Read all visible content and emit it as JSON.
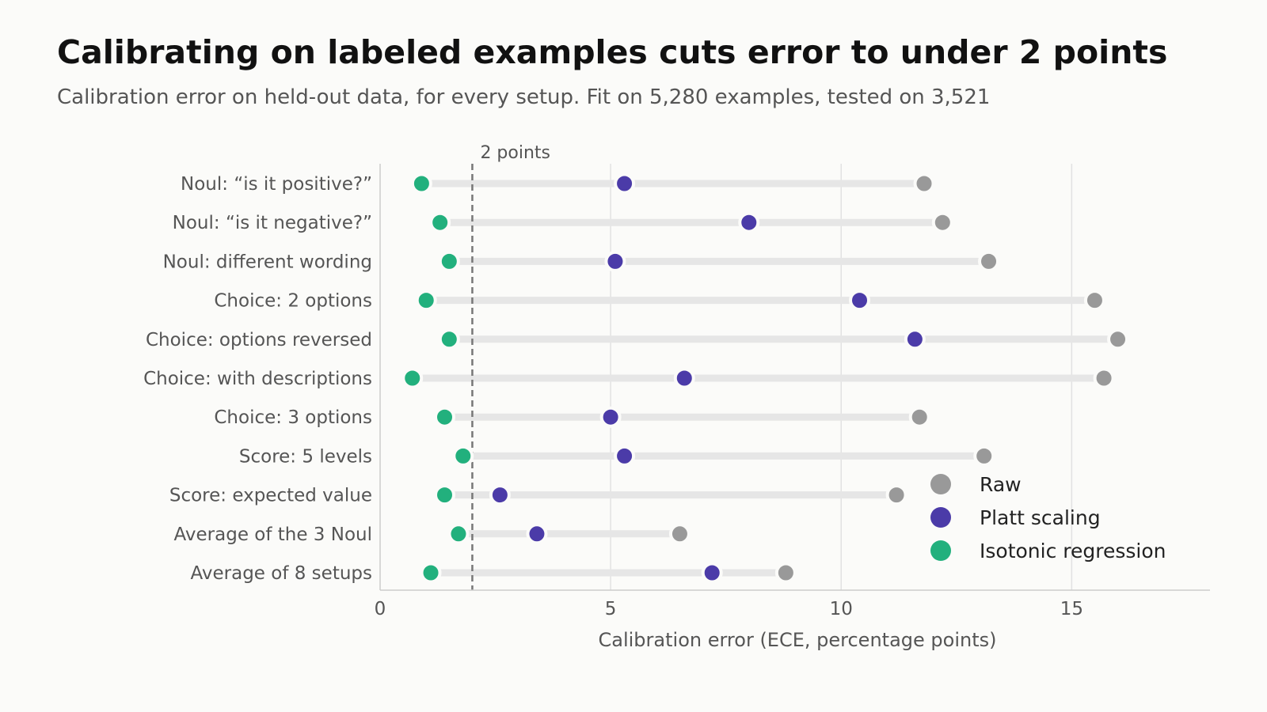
{
  "title": "Calibrating on labeled examples cuts error to under 2 points",
  "subtitle": "Calibration error on held-out data, for every setup. Fit on 5,280 examples, tested on 3,521",
  "colors": {
    "raw": "#999999",
    "platt": "#4b3ba8",
    "isotonic": "#22b07d",
    "connector": "#e6e6e6",
    "reference_line": "#777777",
    "background": "#fbfbf9"
  },
  "chart_data": {
    "type": "scatter",
    "subtype": "dumbbell",
    "title": "Calibrating on labeled examples cuts error to under 2 points",
    "subtitle": "Calibration error on held-out data, for every setup. Fit on 5,280 examples, tested on 3,521",
    "xlabel": "Calibration error (ECE, percentage points)",
    "ylabel": "",
    "xlim": [
      0,
      18
    ],
    "xticks": [
      0,
      5,
      10,
      15
    ],
    "grid": "vertical",
    "legend_position": "bottom-right",
    "reference_line": {
      "x": 2,
      "label": "2 points"
    },
    "categories": [
      "Noul: “is it positive?”",
      "Noul: “is it negative?”",
      "Noul: different wording",
      "Choice: 2 options",
      "Choice: options reversed",
      "Choice: with descriptions",
      "Choice: 3 options",
      "Score: 5 levels",
      "Score: expected value",
      "Average of the 3 Noul",
      "Average of 8 setups"
    ],
    "series": [
      {
        "name": "Raw",
        "color_key": "raw",
        "values": [
          11.8,
          12.2,
          13.2,
          15.5,
          16.0,
          15.7,
          11.7,
          13.1,
          11.2,
          6.5,
          8.8
        ]
      },
      {
        "name": "Platt scaling",
        "color_key": "platt",
        "values": [
          5.3,
          8.0,
          5.1,
          10.4,
          11.6,
          6.6,
          5.0,
          5.3,
          2.6,
          3.4,
          7.2
        ]
      },
      {
        "name": "Isotonic regression",
        "color_key": "isotonic",
        "values": [
          0.9,
          1.3,
          1.5,
          1.0,
          1.5,
          0.7,
          1.4,
          1.8,
          1.4,
          1.7,
          1.1
        ]
      }
    ]
  }
}
